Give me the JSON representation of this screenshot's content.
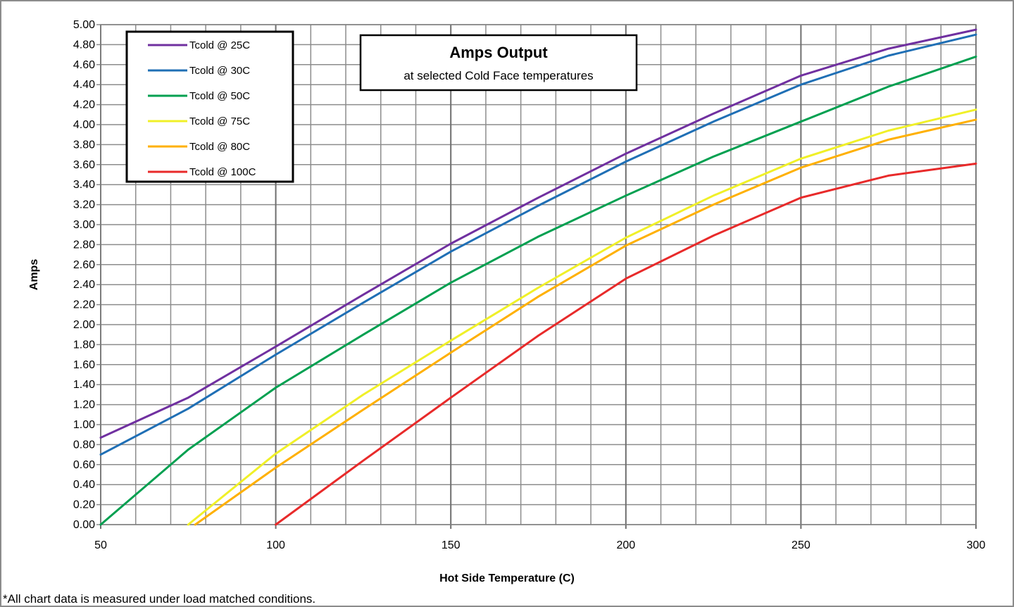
{
  "chart_data": {
    "type": "line",
    "title": "Amps Output",
    "subtitle": "at selected Cold Face temperatures",
    "xlabel": "Hot Side Temperature (C)",
    "ylabel": "Amps",
    "xlim": [
      50,
      300
    ],
    "ylim": [
      0,
      5
    ],
    "x_ticks": [
      50,
      100,
      150,
      200,
      250,
      300
    ],
    "y_tick_step": 0.2,
    "grid": true,
    "legend_position": "top-left",
    "footnote": "*All chart data is measured under load matched conditions.",
    "series": [
      {
        "name": "Tcold @ 25C",
        "color": "#7030a0",
        "points": [
          [
            50,
            0.87
          ],
          [
            75,
            1.27
          ],
          [
            100,
            1.78
          ],
          [
            125,
            2.3
          ],
          [
            150,
            2.81
          ],
          [
            175,
            3.27
          ],
          [
            200,
            3.71
          ],
          [
            225,
            4.11
          ],
          [
            250,
            4.49
          ],
          [
            275,
            4.76
          ],
          [
            300,
            4.95
          ]
        ]
      },
      {
        "name": "Tcold @ 30C",
        "color": "#1f6fb5",
        "points": [
          [
            50,
            0.7
          ],
          [
            75,
            1.16
          ],
          [
            100,
            1.7
          ],
          [
            125,
            2.22
          ],
          [
            150,
            2.73
          ],
          [
            175,
            3.19
          ],
          [
            200,
            3.63
          ],
          [
            225,
            4.03
          ],
          [
            250,
            4.4
          ],
          [
            275,
            4.69
          ],
          [
            300,
            4.9
          ]
        ]
      },
      {
        "name": "Tcold @ 50C",
        "color": "#00a050",
        "points": [
          [
            50,
            0.0
          ],
          [
            75,
            0.75
          ],
          [
            100,
            1.37
          ],
          [
            125,
            1.9
          ],
          [
            150,
            2.42
          ],
          [
            175,
            2.88
          ],
          [
            200,
            3.29
          ],
          [
            225,
            3.68
          ],
          [
            250,
            4.03
          ],
          [
            275,
            4.38
          ],
          [
            300,
            4.68
          ]
        ]
      },
      {
        "name": "Tcold @ 75C",
        "color": "#f0f028",
        "points": [
          [
            75,
            0.0
          ],
          [
            100,
            0.71
          ],
          [
            125,
            1.3
          ],
          [
            150,
            1.84
          ],
          [
            175,
            2.37
          ],
          [
            200,
            2.87
          ],
          [
            225,
            3.29
          ],
          [
            250,
            3.66
          ],
          [
            275,
            3.94
          ],
          [
            300,
            4.15
          ]
        ]
      },
      {
        "name": "Tcold @ 80C",
        "color": "#ffb000",
        "points": [
          [
            77,
            0.0
          ],
          [
            100,
            0.57
          ],
          [
            125,
            1.15
          ],
          [
            150,
            1.72
          ],
          [
            175,
            2.28
          ],
          [
            200,
            2.79
          ],
          [
            225,
            3.2
          ],
          [
            250,
            3.57
          ],
          [
            275,
            3.85
          ],
          [
            300,
            4.05
          ]
        ]
      },
      {
        "name": "Tcold @ 100C",
        "color": "#e82a2a",
        "points": [
          [
            100,
            0.0
          ],
          [
            125,
            0.64
          ],
          [
            150,
            1.27
          ],
          [
            175,
            1.89
          ],
          [
            200,
            2.46
          ],
          [
            225,
            2.89
          ],
          [
            250,
            3.27
          ],
          [
            275,
            3.49
          ],
          [
            300,
            3.61
          ]
        ]
      }
    ]
  }
}
